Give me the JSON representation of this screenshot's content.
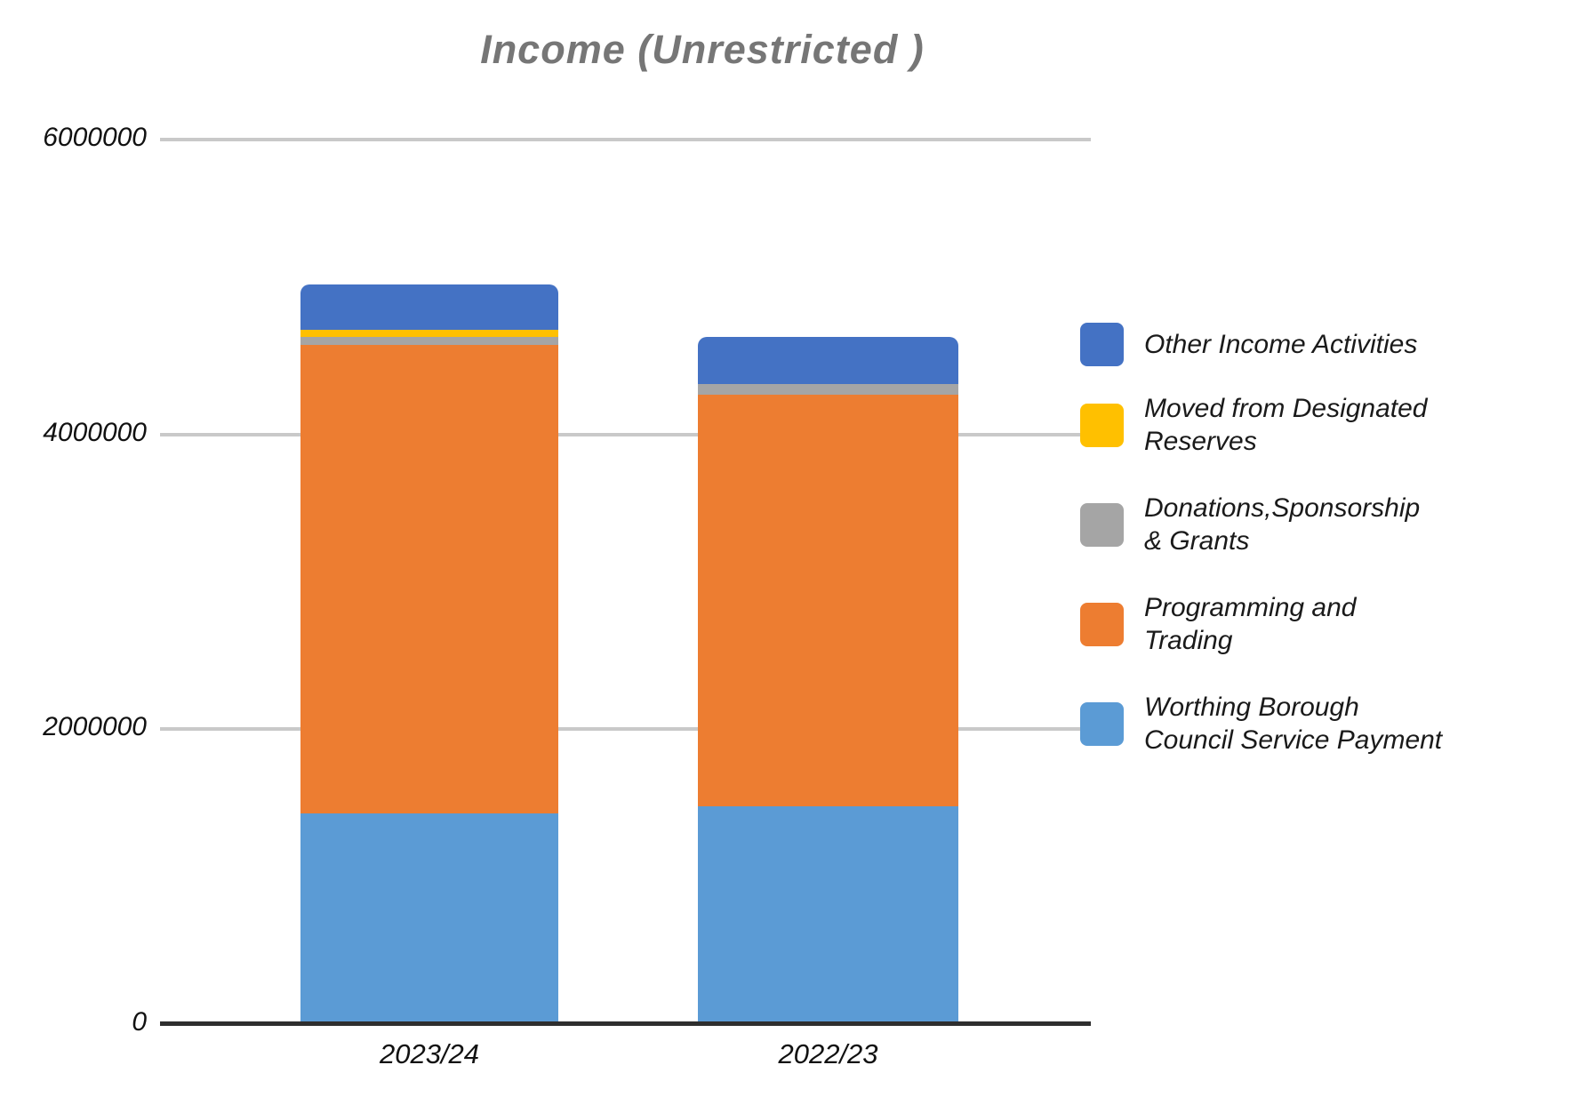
{
  "chart_data": {
    "type": "bar",
    "stacked": true,
    "title": "Income (Unrestricted )",
    "categories": [
      "2023/24",
      "2022/23"
    ],
    "series": [
      {
        "name": "Worthing Borough Council Service Payment",
        "color": "#5B9BD5",
        "values": [
          1430000,
          1480000
        ]
      },
      {
        "name": "Programming and Trading",
        "color": "#ED7D31",
        "values": [
          3180000,
          2790000
        ]
      },
      {
        "name": "Donations,Sponsorship & Grants",
        "color": "#A5A5A5",
        "values": [
          50000,
          70000
        ]
      },
      {
        "name": "Moved from  Designated Reserves",
        "color": "#FFC000",
        "values": [
          50000,
          0
        ]
      },
      {
        "name": "Other Income Activities",
        "color": "#4472C4",
        "values": [
          310000,
          320000
        ]
      }
    ],
    "ylim": [
      0,
      6000000
    ],
    "yticks": [
      {
        "value": 6000000,
        "label": "6000000"
      },
      {
        "value": 4000000,
        "label": "4000000"
      },
      {
        "value": 2000000,
        "label": "2000000"
      },
      {
        "value": 0,
        "label": "0"
      }
    ],
    "grid": true,
    "legend_position": "right"
  },
  "legend": {
    "items": [
      {
        "series_index": 4,
        "label": "Other Income Activities"
      },
      {
        "series_index": 3,
        "label": "Moved from  Designated\nReserves"
      },
      {
        "series_index": 2,
        "label": "Donations,Sponsorship\n& Grants"
      },
      {
        "series_index": 1,
        "label": "Programming and\nTrading"
      },
      {
        "series_index": 0,
        "label": "Worthing Borough\nCouncil Service Payment"
      }
    ]
  },
  "colors": {
    "gridline": "#C9C9C9",
    "axis": "#2E2E2E",
    "title": "#767676"
  }
}
